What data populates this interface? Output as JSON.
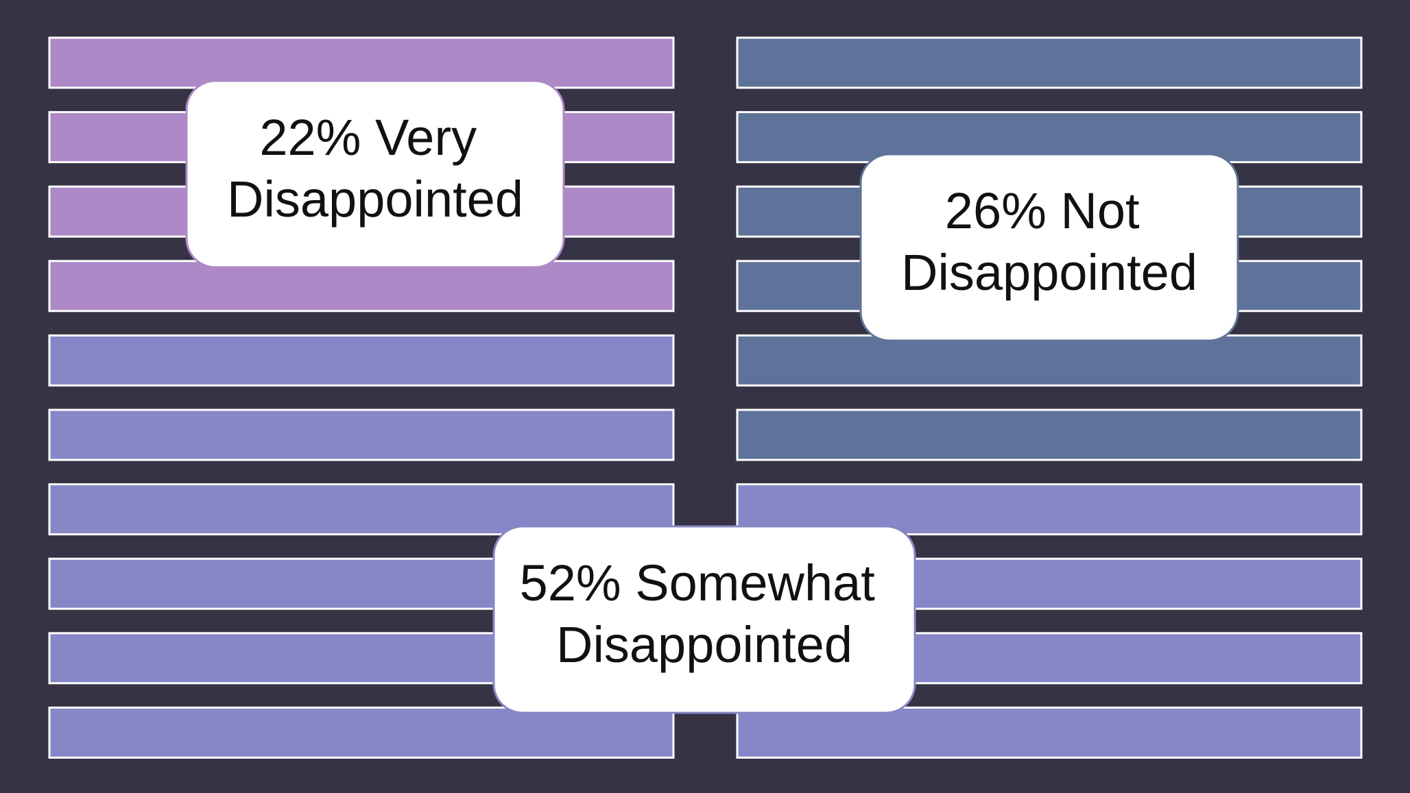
{
  "chart_data": {
    "type": "waffle",
    "title": "",
    "total_bars": 20,
    "colors": {
      "background": "#363345",
      "very_disappointed": "#ad89c7",
      "somewhat_disappointed": "#8786c6",
      "not_disappointed": "#5f7299",
      "bar_outline": "#ffffff",
      "label_text": "#111111",
      "label_background": "#ffffff"
    },
    "columns": [
      {
        "name": "left",
        "bars": [
          "very_disappointed",
          "very_disappointed",
          "very_disappointed",
          "very_disappointed",
          "somewhat_disappointed",
          "somewhat_disappointed",
          "somewhat_disappointed",
          "somewhat_disappointed",
          "somewhat_disappointed",
          "somewhat_disappointed"
        ]
      },
      {
        "name": "right",
        "bars": [
          "not_disappointed",
          "not_disappointed",
          "not_disappointed",
          "not_disappointed",
          "not_disappointed",
          "not_disappointed",
          "somewhat_disappointed",
          "somewhat_disappointed",
          "somewhat_disappointed",
          "somewhat_disappointed"
        ]
      }
    ],
    "series": [
      {
        "key": "very_disappointed",
        "value": 22,
        "label_line1": "22% Very",
        "label_line2": "Disappointed"
      },
      {
        "key": "not_disappointed",
        "value": 26,
        "label_line1": "26% Not",
        "label_line2": "Disappointed"
      },
      {
        "key": "somewhat_disappointed",
        "value": 52,
        "label_line1": "52% Somewhat",
        "label_line2": "Disappointed"
      }
    ]
  }
}
